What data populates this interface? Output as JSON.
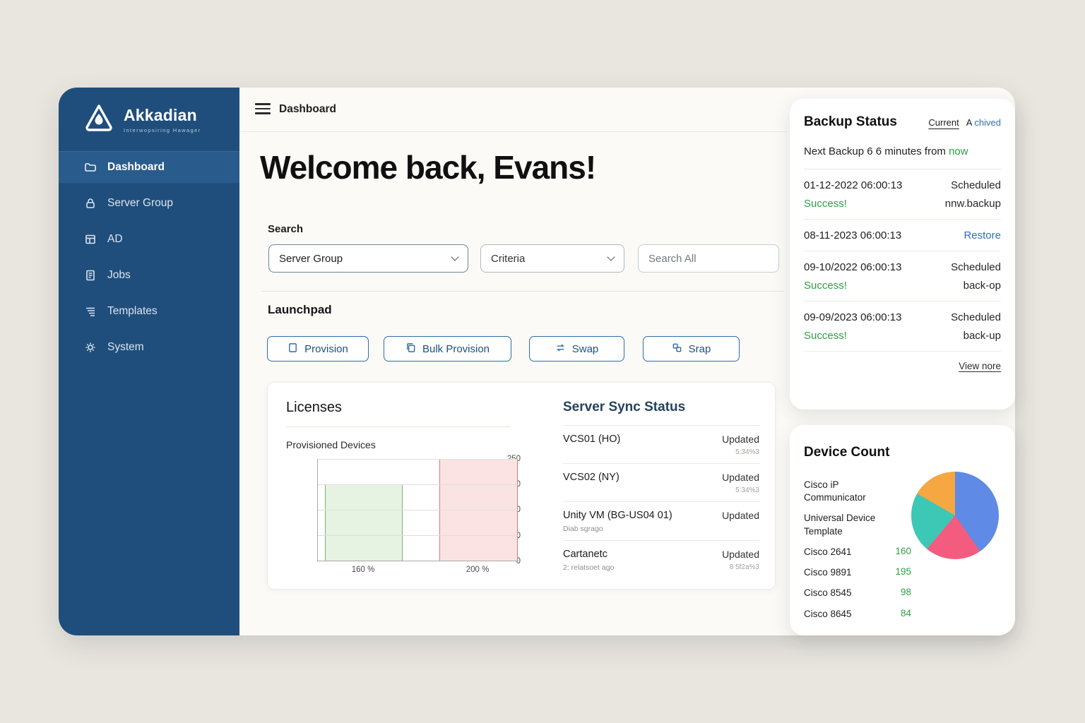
{
  "sidebar": {
    "brand": {
      "title": "Akkadian",
      "subtitle": "Interwopsiring Hawager"
    },
    "items": [
      {
        "label": "Dashboard"
      },
      {
        "label": "Server Group"
      },
      {
        "label": "AD"
      },
      {
        "label": "Jobs"
      },
      {
        "label": "Templates"
      },
      {
        "label": "System"
      }
    ]
  },
  "topbar": {
    "breadcrumb": "Dashboard"
  },
  "main": {
    "welcome": "Welcome back, Evans!",
    "search": {
      "label": "Search",
      "group_value": "Server Group",
      "criteria_value": "Criteria",
      "query_placeholder": "Search All"
    },
    "launchpad": {
      "title": "Launchpad",
      "buttons": [
        "Provision",
        "Bulk Provision",
        "Swap",
        "Srap"
      ]
    },
    "licenses": {
      "title": "Licenses"
    },
    "sync": {
      "title": "Server Sync Status",
      "rows": [
        {
          "name": "VCS01 (HO)",
          "sub": "",
          "status": "Updated",
          "time": "5:34%3"
        },
        {
          "name": "VCS02 (NY)",
          "sub": "",
          "status": "Updated",
          "time": "5:34%3"
        },
        {
          "name": "Unity VM (BG-US04 01)",
          "sub": "Diab sgrago",
          "status": "Updated",
          "time": ""
        },
        {
          "name": "Cartanetc",
          "sub": "2: relatsoet ago",
          "status": "Updated",
          "time": "8 5f2a%3"
        }
      ]
    }
  },
  "backup": {
    "title": "Backup Status",
    "tab_current": "Current",
    "tab_archived_a": "A",
    "tab_archived_rest": "chived",
    "next_prefix": "Next Backup 6 6 minutes from",
    "next_highlight": "now",
    "rows": [
      {
        "date": "01-12-2022 06:00:13",
        "status": "Success!",
        "right1": "Scheduled",
        "right2": "nnw.backup"
      },
      {
        "date": "08-11-2023 06:00:13",
        "status": "",
        "right1": "Restore",
        "right2": ""
      },
      {
        "date": "09-10/2022 06:00:13",
        "status": "Success!",
        "right1": "Scheduled",
        "right2": "back-op"
      },
      {
        "date": "09-09/2023 06:00:13",
        "status": "Success!",
        "right1": "Scheduled",
        "right2": "back-up"
      }
    ],
    "view_more": "View nore"
  },
  "device_count": {
    "title": "Device Count"
  },
  "chart_data": [
    {
      "type": "bar",
      "title": "Provisioned Devices",
      "categories": [
        "160 %",
        "200 %"
      ],
      "values": [
        120,
        250
      ],
      "yticks": [
        250,
        120,
        100,
        50,
        0
      ],
      "ylim": [
        0,
        250
      ],
      "grid": true,
      "fills": [
        "#e6f2e2",
        "#fbe3e3"
      ],
      "strokes": [
        "#79b472",
        "#d47c78"
      ]
    },
    {
      "type": "pie",
      "title": "Device Count",
      "legend": [
        {
          "label": "Cisco iP Communicator"
        },
        {
          "label": "Universal Device Template"
        },
        {
          "label": "Cisco 2641",
          "value": 160
        },
        {
          "label": "Cisco 9891",
          "value": 195
        },
        {
          "label": "Cisco 8545",
          "value": 98
        },
        {
          "label": "Cisco 8645",
          "value": 84
        }
      ],
      "slices": [
        {
          "color": "#5f8ae6",
          "deg": 145
        },
        {
          "color": "#f45c7f",
          "deg": 75
        },
        {
          "color": "#3cc8b4",
          "deg": 80
        },
        {
          "color": "#f5a742",
          "deg": 60
        }
      ],
      "legend_position": "left"
    }
  ],
  "colors": {
    "sidebar": "#1f4e7c",
    "accent": "#2e6cac",
    "success": "#2f9e44",
    "link": "#2f6fb5"
  }
}
